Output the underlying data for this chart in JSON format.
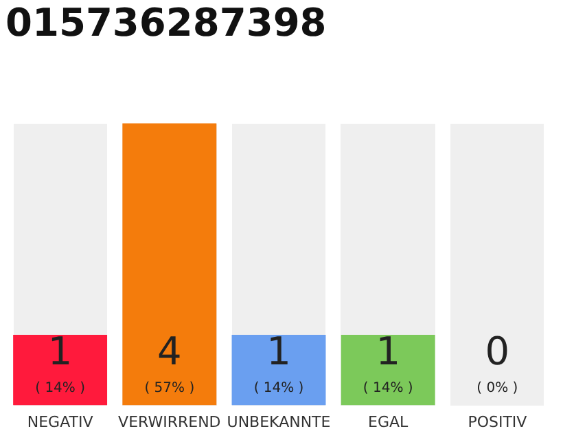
{
  "chart_data": {
    "type": "bar",
    "title": "015736287398",
    "categories": [
      "NEGATIV",
      "VERWIRREND",
      "UNBEKANNTE",
      "EGAL",
      "POSITIV"
    ],
    "values": [
      1,
      4,
      1,
      1,
      0
    ],
    "colors": [
      "#ff1a3c",
      "#f47c0c",
      "#6a9ff0",
      "#7cc95a",
      "#dddddd"
    ],
    "ylim": [
      0,
      4
    ],
    "data_labels": true,
    "grid": false,
    "legend": false,
    "tick_labels": "x",
    "annotations": [
      "( 14% )",
      "( 57% )",
      "( 14% )",
      "( 14% )",
      "( 0% )"
    ]
  }
}
